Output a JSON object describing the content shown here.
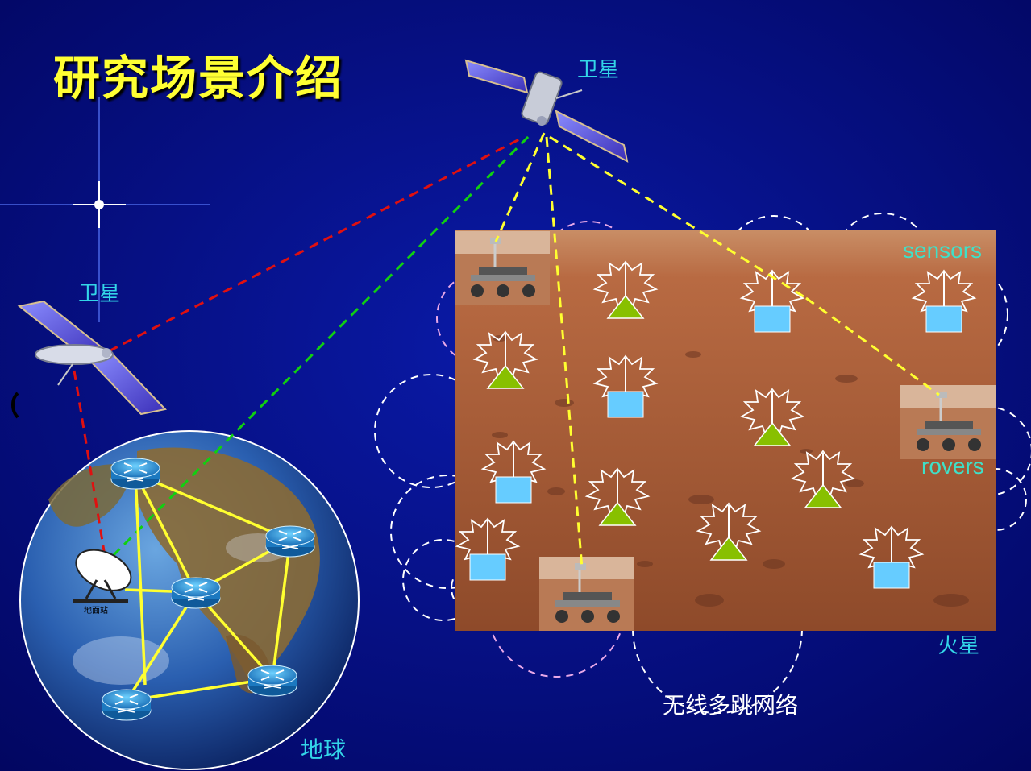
{
  "title": "研究场景介绍",
  "labels": {
    "satellite_top": "卫星",
    "satellite_left": "卫星",
    "sensors": "sensors",
    "rovers": "rovers",
    "mars": "火星",
    "network": "无线多跳网络",
    "earth": "地球",
    "ground_station": "地面站"
  },
  "colors": {
    "background": "#030a6e",
    "title": "#ffff33",
    "label": "#33d6e8",
    "link_red": "#e01010",
    "link_green": "#10d010",
    "link_yellow": "#ffff30",
    "sensor_box": "#66ccff",
    "sensor_triangle": "#88c000"
  },
  "icons": [
    "satellite-icon",
    "earth-globe-icon",
    "router-icon",
    "ground-station-dish-icon",
    "mars-rover-icon",
    "sensor-node-icon",
    "wireless-burst-icon"
  ]
}
